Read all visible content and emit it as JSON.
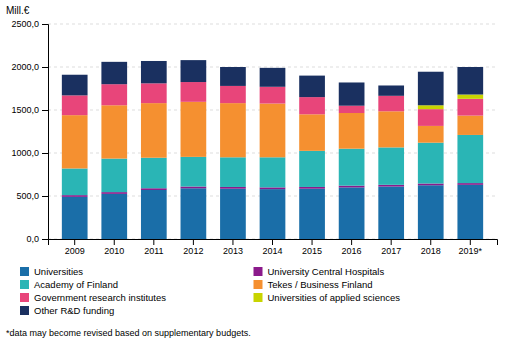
{
  "chart_data": {
    "type": "bar",
    "stacked": true,
    "ylabel": "Mill.€",
    "annotations": [
      "*data may become revised based on supplementary budgets."
    ],
    "categories": [
      "2009",
      "2010",
      "2011",
      "2012",
      "2013",
      "2014",
      "2015",
      "2016",
      "2017",
      "2018",
      "2019*"
    ],
    "series": [
      {
        "name": "Universities",
        "color": "#1a6ea8",
        "values": [
          490,
          525,
          570,
          590,
          585,
          580,
          585,
          600,
          610,
          625,
          630
        ]
      },
      {
        "name": "University Central Hospitals",
        "color": "#8b1a8b",
        "values": [
          20,
          20,
          20,
          20,
          20,
          20,
          20,
          20,
          20,
          20,
          20
        ]
      },
      {
        "name": "Academy of Finland",
        "color": "#2ab5b5",
        "values": [
          310,
          390,
          355,
          345,
          345,
          350,
          420,
          430,
          435,
          475,
          560
        ]
      },
      {
        "name": "Tekes / Business Finland",
        "color": "#f59030",
        "values": [
          620,
          620,
          635,
          640,
          630,
          625,
          425,
          415,
          420,
          195,
          225
        ]
      },
      {
        "name": "Government research institutes",
        "color": "#e8457a",
        "values": [
          230,
          245,
          230,
          230,
          200,
          195,
          200,
          85,
          180,
          195,
          195
        ]
      },
      {
        "name": "Universities of applied sciences",
        "color": "#c8d400",
        "values": [
          0,
          0,
          0,
          0,
          0,
          0,
          0,
          0,
          0,
          45,
          50
        ]
      },
      {
        "name": "Other R&D funding",
        "color": "#1a3060",
        "values": [
          240,
          260,
          260,
          255,
          220,
          220,
          250,
          270,
          120,
          390,
          320
        ]
      }
    ],
    "ylim": [
      0,
      2500
    ],
    "yticks": [
      {
        "value": 0,
        "label": "0,0"
      },
      {
        "value": 500,
        "label": "500,0"
      },
      {
        "value": 1000,
        "label": "1000,0"
      },
      {
        "value": 1500,
        "label": "1500,0"
      },
      {
        "value": 2000,
        "label": "2000,0"
      },
      {
        "value": 2500,
        "label": "2500,0"
      }
    ],
    "grid": true,
    "legend": "bottom"
  }
}
